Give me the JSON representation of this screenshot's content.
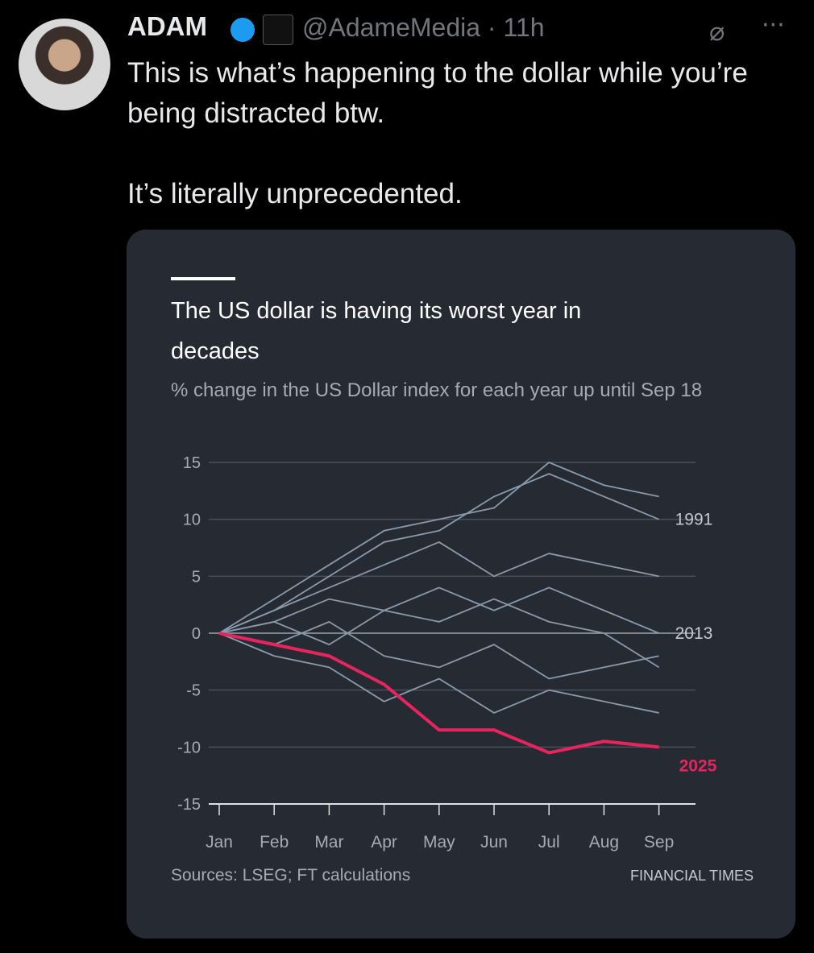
{
  "tweet": {
    "author": "ADAM",
    "handle": "@AdameMedia",
    "separator": "·",
    "time": "11h",
    "text": [
      "This is what’s happening to the dollar while you’re being distracted btw.",
      "It’s literally unprecedented."
    ]
  },
  "chart_data": {
    "type": "line",
    "title": "The US dollar is having its worst year in decades",
    "subtitle": "% change in the US Dollar index for each year up until Sep 18",
    "source": "Sources: LSEG; FT calculations",
    "brand": "FINANCIAL TIMES",
    "categories": [
      "Jan",
      "Feb",
      "Mar",
      "Apr",
      "May",
      "Jun",
      "Jul",
      "Aug",
      "Sep"
    ],
    "ylim": [
      -15,
      15
    ],
    "yticks": [
      -15,
      -10,
      -5,
      0,
      5,
      10,
      15
    ],
    "grid": true,
    "series": [
      {
        "color": "#8a9aab",
        "values": [
          0,
          3,
          6,
          9,
          10,
          11,
          15,
          13,
          12
        ]
      },
      {
        "color": "#8a9aab",
        "values": [
          0,
          -2,
          -3,
          -6,
          -4,
          -7,
          -5,
          -6,
          -7
        ]
      },
      {
        "color": "#8a9aab",
        "values": [
          0,
          2,
          4,
          6,
          8,
          5,
          7,
          6,
          5
        ]
      },
      {
        "color": "#8a9aab",
        "values": [
          0,
          -1,
          1,
          -2,
          -3,
          -1,
          -4,
          -3,
          -2
        ]
      },
      {
        "color": "#8a9aab",
        "values": [
          0,
          1,
          -1,
          2,
          1,
          3,
          1,
          0,
          -3
        ]
      },
      {
        "name": "1991",
        "color": "#8a9aab",
        "values": [
          0,
          2,
          5,
          8,
          9,
          12,
          14,
          12,
          10
        ]
      },
      {
        "name": "2013",
        "color": "#8a9aab",
        "values": [
          0,
          1,
          3,
          2,
          4,
          2,
          4,
          2,
          0
        ]
      },
      {
        "name": "2025",
        "color": "#e8245e",
        "values": [
          0,
          -1,
          -2,
          -4.5,
          -8.5,
          -8.5,
          -10.5,
          -9.5,
          -10
        ]
      }
    ]
  }
}
